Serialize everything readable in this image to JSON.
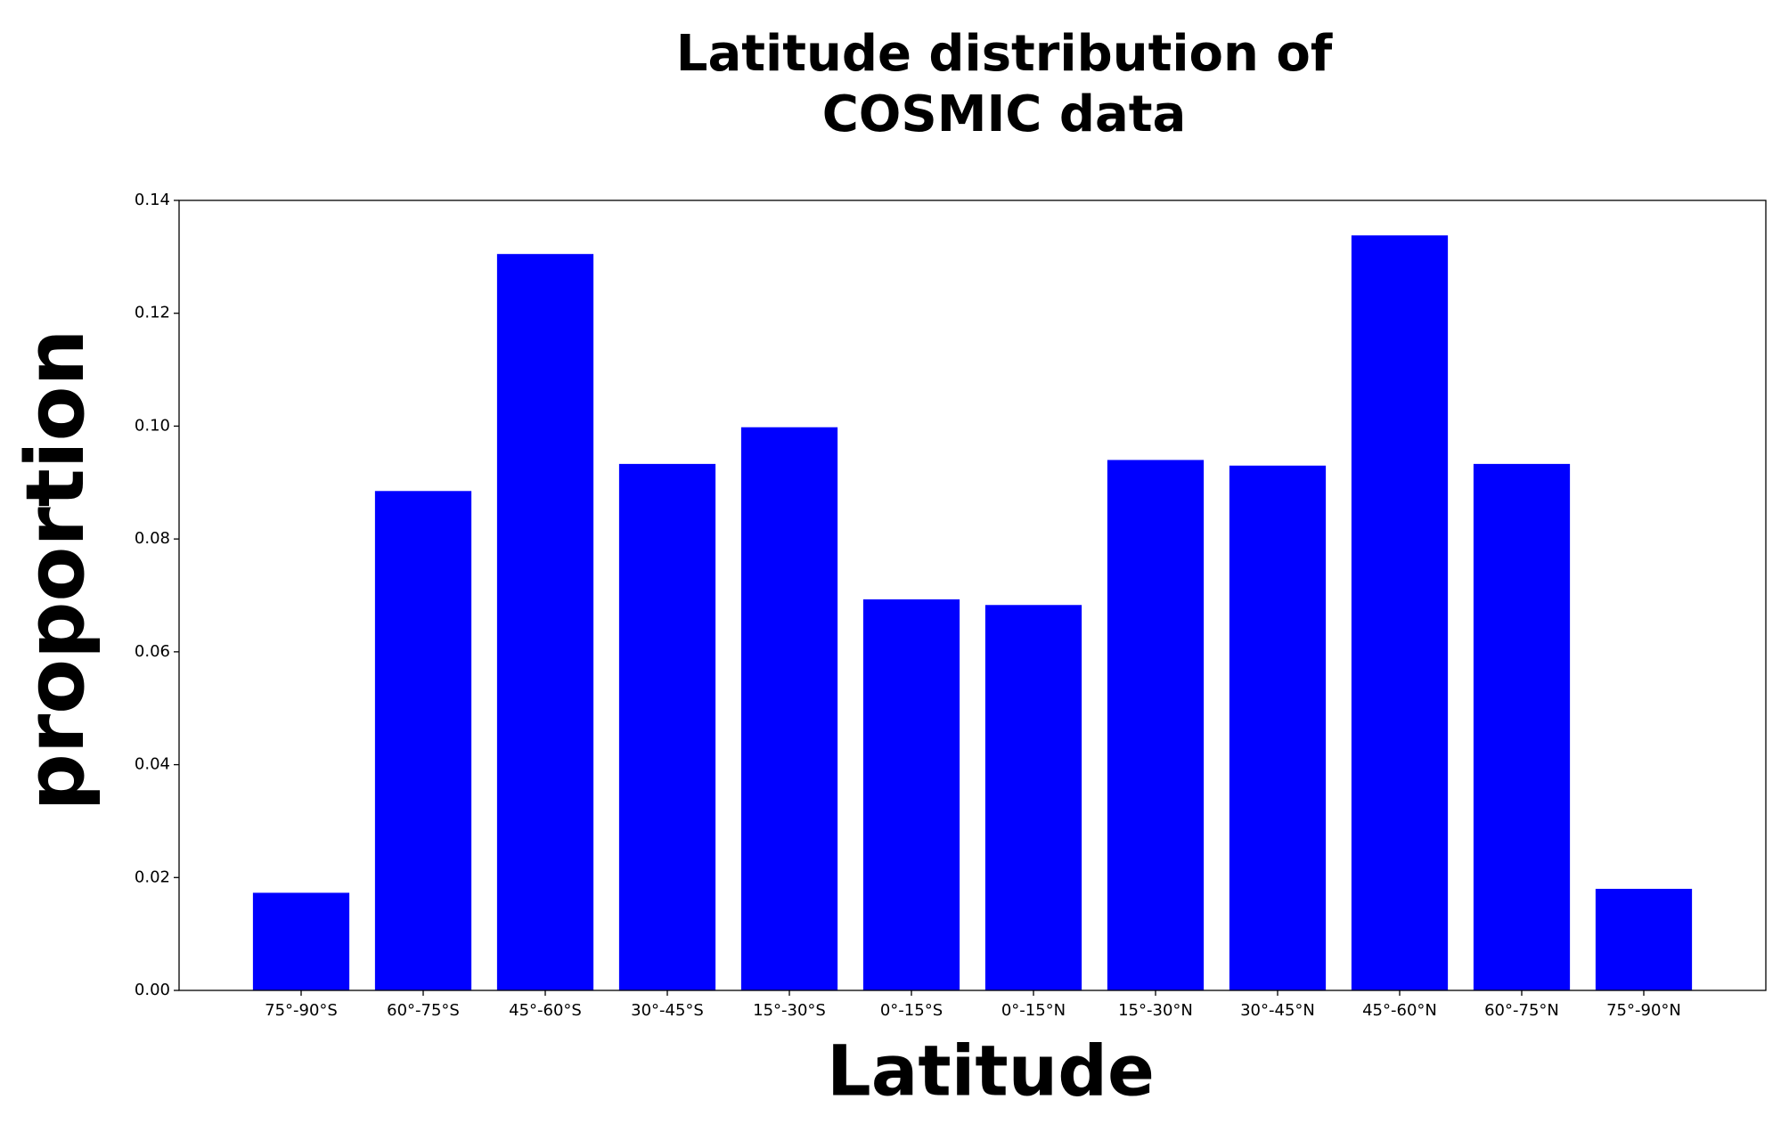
{
  "chart_data": {
    "type": "bar",
    "title": "Latitude distribution of\nCOSMIC data",
    "x_label": "Latitude",
    "y_label": "proportion",
    "categories": [
      "75°-90°S",
      "60°-75°S",
      "45°-60°S",
      "30°-45°S",
      "15°-30°S",
      "0°-15°S",
      "0°-15°N",
      "15°-30°N",
      "30°-45°N",
      "45°-60°N",
      "60°-75°N",
      "75°-90°N"
    ],
    "values": [
      0.0173,
      0.0885,
      0.1305,
      0.0933,
      0.0998,
      0.0693,
      0.0683,
      0.094,
      0.093,
      0.1338,
      0.0933,
      0.018
    ],
    "color": "#0000ff",
    "ylim": [
      0,
      0.14
    ],
    "yticks": [
      {
        "value": 0,
        "label": "0.00"
      },
      0.02,
      0.04,
      0.06,
      0.08,
      {
        "value": 0.1,
        "label": "0.10"
      },
      0.12,
      0.14
    ],
    "grid": false
  }
}
